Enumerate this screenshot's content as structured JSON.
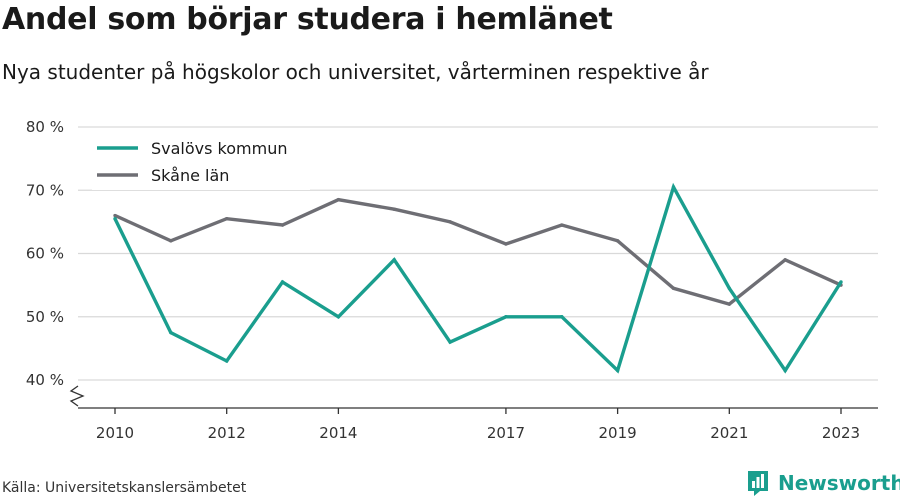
{
  "header": {
    "title": "Andel som börjar studera i hemlänet",
    "subtitle": "Nya studenter på högskolor och universitet, vårterminen respektive år"
  },
  "footer": {
    "source": "Källa: Universitetskanslersämbetet",
    "brand": "Newsworthy"
  },
  "colors": {
    "svalov": "#1a9e8e",
    "skane": "#6e6e74",
    "grid": "#d9d9d9",
    "brand": "#1a9e8e"
  },
  "chart_data": {
    "type": "line",
    "x": [
      2010,
      2011,
      2012,
      2013,
      2014,
      2015,
      2016,
      2017,
      2018,
      2019,
      2020,
      2021,
      2022,
      2023
    ],
    "x_tick_values": [
      2010,
      2012,
      2014,
      2017,
      2019,
      2021,
      2023
    ],
    "x_tick_labels": [
      "2010",
      "2012",
      "2014",
      "2017",
      "2019",
      "2021",
      "2023"
    ],
    "y_tick_values": [
      40,
      50,
      60,
      70,
      80
    ],
    "y_tick_labels": [
      "40 %",
      "50 %",
      "60 %",
      "70 %",
      "80 %"
    ],
    "ylim": [
      40,
      80
    ],
    "y_axis_break": true,
    "grid": true,
    "legend_position": "top-left",
    "series": [
      {
        "name": "Svalövs kommun",
        "color": "#1a9e8e",
        "values": [
          65.5,
          47.5,
          43.0,
          55.5,
          50.0,
          59.0,
          46.0,
          50.0,
          50.0,
          41.5,
          70.5,
          54.5,
          41.5,
          55.5
        ]
      },
      {
        "name": "Skåne län",
        "color": "#6e6e74",
        "values": [
          66.0,
          62.0,
          65.5,
          64.5,
          68.5,
          67.0,
          65.0,
          61.5,
          64.5,
          62.0,
          54.5,
          52.0,
          59.0,
          55.0
        ]
      }
    ]
  }
}
